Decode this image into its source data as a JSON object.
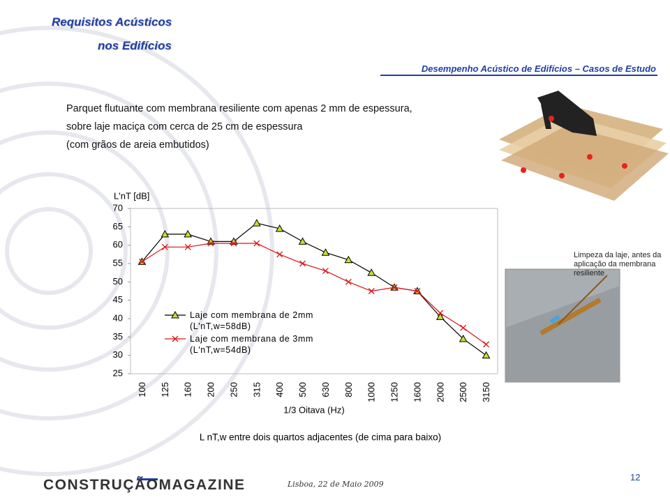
{
  "header": {
    "title_line1": "Requisitos Acústicos",
    "title_line2": "nos Edifícios",
    "section": "Desempenho Acústico de Edifícios – Casos de Estudo"
  },
  "intro": [
    "Parquet flutuante com membrana resiliente com apenas 2 mm de espessura,",
    "sobre laje maciça com cerca de 25 cm de espessura",
    "(com grãos de areia embutidos)"
  ],
  "photo_caption": "Limpeza da laje, antes da aplicação da membrana resiliente",
  "chart_data": {
    "type": "line",
    "y_label": "L'nT [dB]",
    "x_label": "1/3 Oitava (Hz)",
    "caption": "L nT,w entre dois quartos adjacentes (de cima para baixo)",
    "categories": [
      "100",
      "125",
      "160",
      "200",
      "250",
      "315",
      "400",
      "500",
      "630",
      "800",
      "1000",
      "1250",
      "1600",
      "2000",
      "2500",
      "3150"
    ],
    "series": [
      {
        "name": "Laje com membrana de 2mm (L'nT,w=58dB)",
        "color": "#000000",
        "marker": "triangle",
        "marker_fill": "#ccdd33",
        "values": [
          55.5,
          63,
          63,
          61,
          61,
          66,
          64.5,
          61,
          58,
          56,
          52.5,
          48.5,
          47.5,
          40.5,
          34.5,
          30
        ]
      },
      {
        "name": "Laje com membrana de 3mm (L'nT,w=54dB)",
        "color": "#dd1111",
        "marker": "x",
        "values": [
          55.5,
          59.5,
          59.5,
          60.5,
          60.5,
          60.5,
          57.5,
          55,
          53,
          50,
          47.5,
          48.5,
          47.5,
          41.5,
          37.5,
          33
        ]
      }
    ],
    "ylim": [
      25,
      70
    ],
    "yticks": [
      25,
      30,
      35,
      40,
      45,
      50,
      55,
      60,
      65,
      70
    ],
    "grid": false
  },
  "footer": {
    "brand": "CONSTRUÇÃOMAGAZINE",
    "place_date": "Lisboa, 22 de Maio 2009",
    "page": "12"
  }
}
